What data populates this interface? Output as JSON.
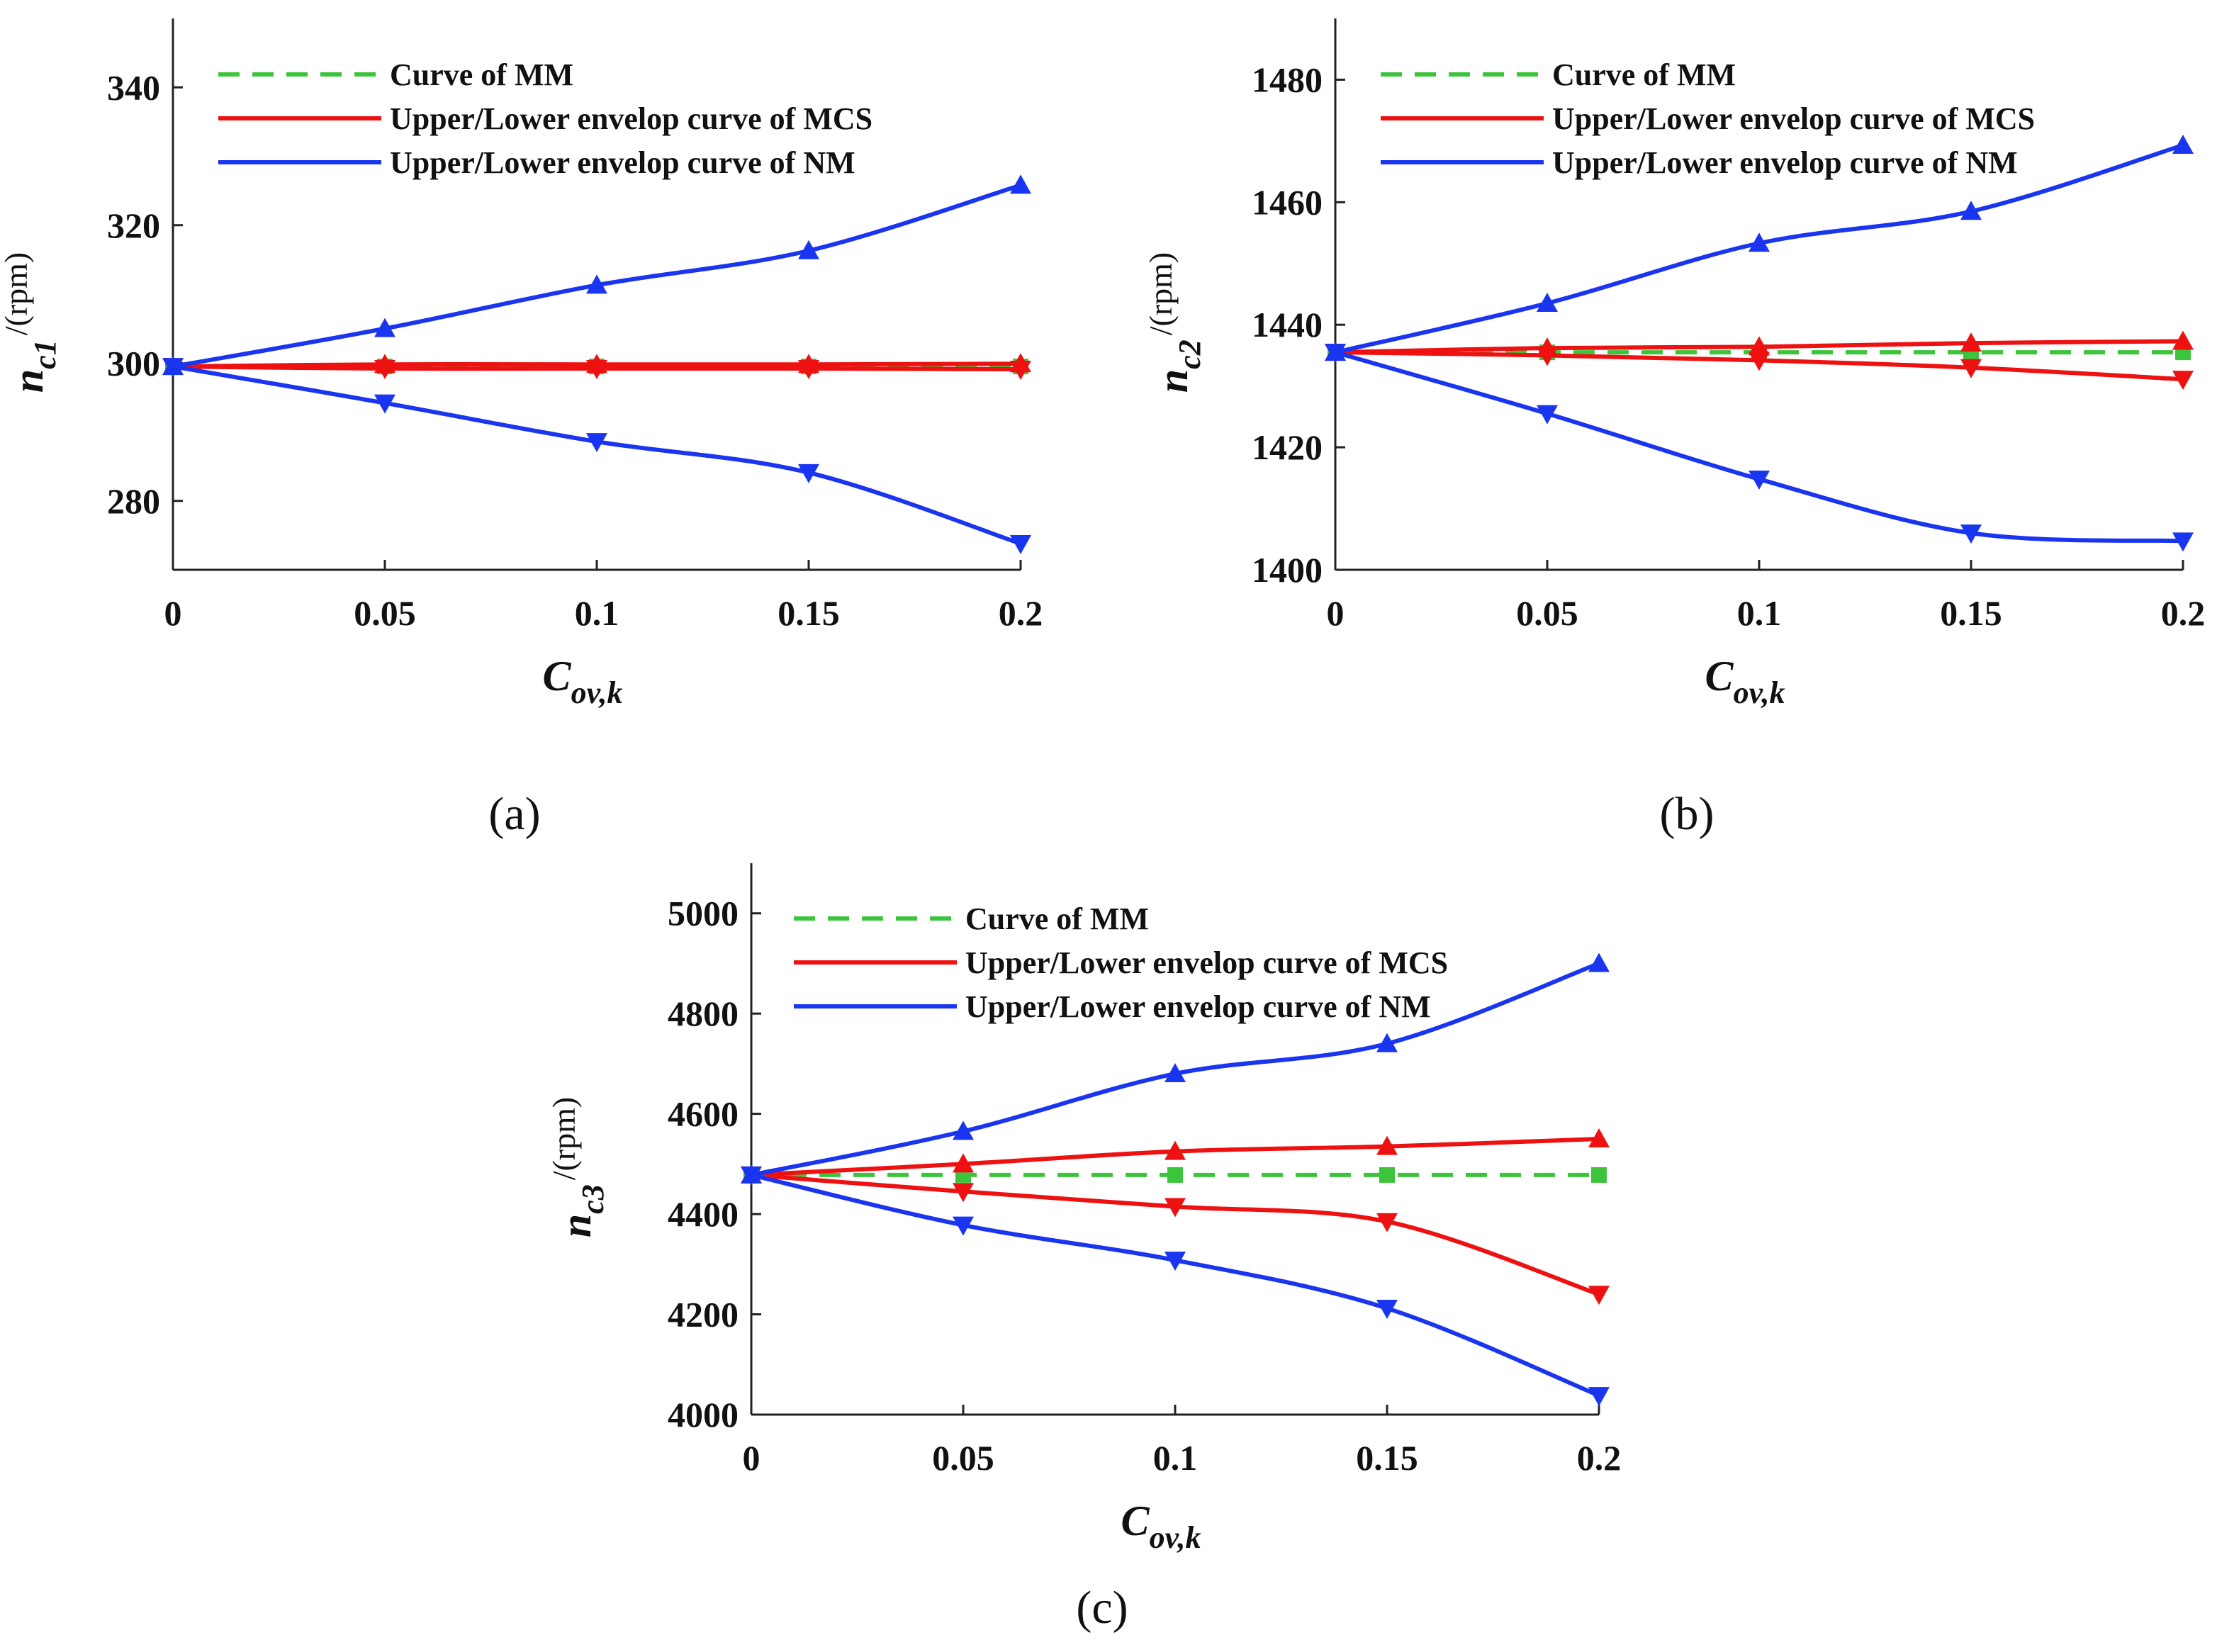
{
  "colors": {
    "mm": "#3cc43c",
    "mcs": "#ee1111",
    "nm": "#1a35f0",
    "axis": "#222222"
  },
  "chart_data": [
    {
      "id": "a",
      "type": "line",
      "panel_label": "(a)",
      "ylabel": {
        "main": "n",
        "sub": "c1",
        "unit": "/(rpm)"
      },
      "xlabel": {
        "main": "C",
        "sub": "ov,k"
      },
      "x": [
        0,
        0.05,
        0.1,
        0.15,
        0.2
      ],
      "xticks": [
        0,
        0.05,
        0.1,
        0.15,
        0.2
      ],
      "xtick_labels": [
        "0",
        "0.05",
        "0.1",
        "0.15",
        "0.2"
      ],
      "yticks": [
        280,
        300,
        320,
        340
      ],
      "ytick_labels": [
        "280",
        "300",
        "320",
        "340"
      ],
      "xlim": [
        0,
        0.2
      ],
      "ylim": [
        270,
        350
      ],
      "legend": [
        "Curve of MM",
        "Upper/Lower envelop curve of MCS",
        "Upper/Lower envelop curve of NM"
      ],
      "series": [
        {
          "name": "Curve of MM",
          "style": "dashed",
          "marker": "square",
          "color_key": "mm",
          "values": [
            299.5,
            299.5,
            299.5,
            299.5,
            299.5
          ]
        },
        {
          "name": "MCS upper",
          "style": "solid",
          "marker": "triangle-up",
          "color_key": "mcs",
          "values": [
            299.5,
            299.8,
            299.8,
            299.8,
            299.9
          ]
        },
        {
          "name": "MCS lower",
          "style": "solid",
          "marker": "triangle-down",
          "color_key": "mcs",
          "values": [
            299.5,
            299.2,
            299.2,
            299.2,
            299.1
          ]
        },
        {
          "name": "NM upper",
          "style": "solid",
          "marker": "triangle-up",
          "color_key": "nm",
          "values": [
            299.5,
            305,
            311.3,
            316.3,
            325.8
          ]
        },
        {
          "name": "NM lower",
          "style": "solid",
          "marker": "triangle-down",
          "color_key": "nm",
          "values": [
            299.5,
            294.2,
            288.6,
            284.1,
            273.8
          ]
        }
      ]
    },
    {
      "id": "b",
      "type": "line",
      "panel_label": "(b)",
      "ylabel": {
        "main": "n",
        "sub": "c2",
        "unit": "/(rpm)"
      },
      "xlabel": {
        "main": "C",
        "sub": "ov,k"
      },
      "x": [
        0,
        0.05,
        0.1,
        0.15,
        0.2
      ],
      "xticks": [
        0,
        0.05,
        0.1,
        0.15,
        0.2
      ],
      "xtick_labels": [
        "0",
        "0.05",
        "0.1",
        "0.15",
        "0.2"
      ],
      "yticks": [
        1400,
        1420,
        1440,
        1460,
        1480
      ],
      "ytick_labels": [
        "1400",
        "1420",
        "1440",
        "1460",
        "1480"
      ],
      "xlim": [
        0,
        0.2
      ],
      "ylim": [
        1400,
        1490
      ],
      "legend": [
        "Curve of MM",
        "Upper/Lower envelop curve of MCS",
        "Upper/Lower envelop curve of NM"
      ],
      "series": [
        {
          "name": "Curve of MM",
          "style": "dashed",
          "marker": "square",
          "color_key": "mm",
          "values": [
            1435.5,
            1435.5,
            1435.5,
            1435.5,
            1435.5
          ]
        },
        {
          "name": "MCS upper",
          "style": "solid",
          "marker": "triangle-up",
          "color_key": "mcs",
          "values": [
            1435.5,
            1436.2,
            1436.4,
            1437,
            1437.3
          ]
        },
        {
          "name": "MCS lower",
          "style": "solid",
          "marker": "triangle-down",
          "color_key": "mcs",
          "values": [
            1435.5,
            1435,
            1434.2,
            1433,
            1431.1
          ]
        },
        {
          "name": "NM upper",
          "style": "solid",
          "marker": "triangle-up",
          "color_key": "nm",
          "values": [
            1435.5,
            1443.5,
            1453.3,
            1458.5,
            1469.3
          ]
        },
        {
          "name": "NM lower",
          "style": "solid",
          "marker": "triangle-down",
          "color_key": "nm",
          "values": [
            1435.5,
            1425.5,
            1414.8,
            1406,
            1404.7
          ]
        }
      ]
    },
    {
      "id": "c",
      "type": "line",
      "panel_label": "(c)",
      "ylabel": {
        "main": "n",
        "sub": "c3",
        "unit": "/(rpm)"
      },
      "xlabel": {
        "main": "C",
        "sub": "ov,k"
      },
      "x": [
        0,
        0.05,
        0.1,
        0.15,
        0.2
      ],
      "xticks": [
        0,
        0.05,
        0.1,
        0.15,
        0.2
      ],
      "xtick_labels": [
        "0",
        "0.05",
        "0.1",
        "0.15",
        "0.2"
      ],
      "yticks": [
        4000,
        4200,
        4400,
        4600,
        4800,
        5000
      ],
      "ytick_labels": [
        "4000",
        "4200",
        "4400",
        "4600",
        "4800",
        "5000"
      ],
      "xlim": [
        0,
        0.2
      ],
      "ylim": [
        4000,
        5100
      ],
      "legend": [
        "Curve of MM",
        "Upper/Lower envelop curve of MCS",
        "Upper/Lower envelop curve of NM"
      ],
      "series": [
        {
          "name": "Curve of MM",
          "style": "dashed",
          "marker": "square",
          "color_key": "mm",
          "values": [
            4478,
            4478,
            4478,
            4478,
            4478
          ]
        },
        {
          "name": "MCS upper",
          "style": "solid",
          "marker": "triangle-up",
          "color_key": "mcs",
          "values": [
            4478,
            4500,
            4525,
            4535,
            4550
          ]
        },
        {
          "name": "MCS lower",
          "style": "solid",
          "marker": "triangle-down",
          "color_key": "mcs",
          "values": [
            4478,
            4445,
            4415,
            4385,
            4240
          ]
        },
        {
          "name": "NM upper",
          "style": "solid",
          "marker": "triangle-up",
          "color_key": "nm",
          "values": [
            4478,
            4565,
            4680,
            4740,
            4900
          ]
        },
        {
          "name": "NM lower",
          "style": "solid",
          "marker": "triangle-down",
          "color_key": "nm",
          "values": [
            4478,
            4378,
            4308,
            4212,
            4038
          ]
        }
      ]
    }
  ]
}
